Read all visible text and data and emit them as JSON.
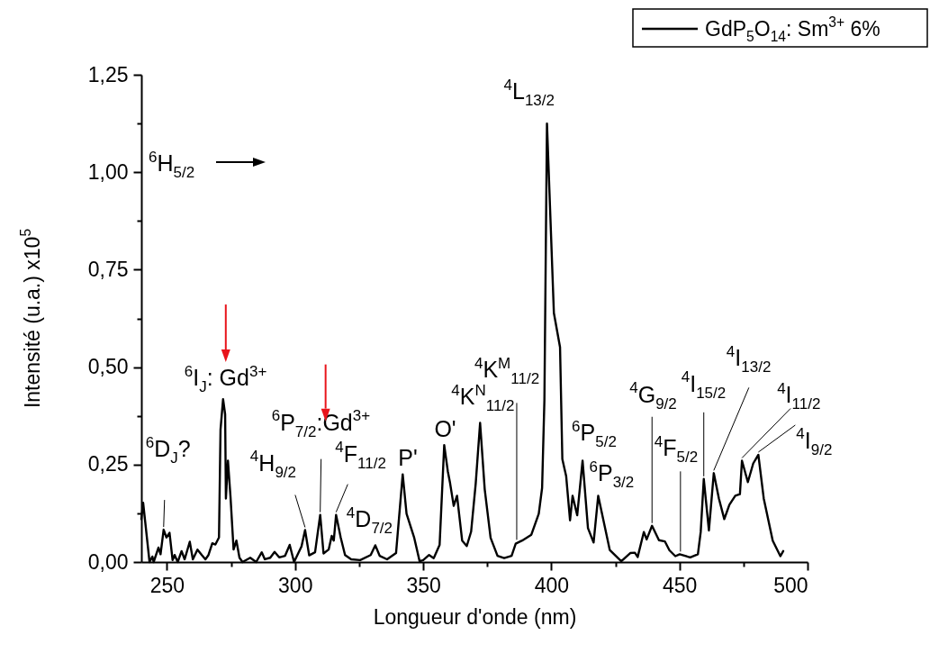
{
  "chart_data": {
    "type": "line",
    "xlabel": "Longueur d'onde (nm)",
    "ylabel": "Intensité (u.a.) x10$^{5}$",
    "x": [
      240,
      240.7,
      243.2,
      244.3,
      244.8,
      246.7,
      247.5,
      248.7,
      249.8,
      251,
      252.2,
      253,
      254.2,
      255.7,
      256.9,
      258.9,
      260.1,
      261.9,
      263.6,
      265,
      266.2,
      267.7,
      268.9,
      270.3,
      270.9,
      271.9,
      272.7,
      273,
      273.8,
      274.8,
      276,
      277.1,
      278.3,
      279.5,
      282.5,
      284.8,
      287,
      288.2,
      290.3,
      292,
      293.8,
      296.1,
      297.9,
      299.6,
      301.4,
      302.5,
      303.9,
      305.5,
      307.8,
      309.8,
      311.1,
      313.1,
      314.3,
      315.1,
      316,
      317.8,
      319.5,
      321.9,
      325.4,
      329.5,
      331.3,
      333,
      335.9,
      339.4,
      342,
      343.5,
      346.5,
      348.6,
      350,
      352.3,
      354.1,
      356.4,
      358.2,
      359.6,
      360.5,
      361.9,
      363.2,
      365.2,
      367,
      368.7,
      370.5,
      372.2,
      374,
      376.3,
      379,
      381.6,
      384.5,
      386.1,
      388.6,
      392.2,
      395.1,
      396.4,
      397.3,
      398.3,
      401,
      403.4,
      404.3,
      405.8,
      407.3,
      408.3,
      410.1,
      412.2,
      414.3,
      416.5,
      418.3,
      422.8,
      427.3,
      430.8,
      432.6,
      433.7,
      436.1,
      437.2,
      439.3,
      442,
      444.3,
      446.1,
      448.4,
      450.1,
      454.2,
      457.2,
      458.3,
      459.5,
      461.5,
      463.4,
      465.4,
      467.5,
      469.5,
      471.8,
      473.6,
      474.4,
      476.7,
      478.8,
      480.8,
      482.9,
      486.4,
      489.4,
      490.5
    ],
    "series": [
      {
        "name": "GdP$_{5}$O$_{14}$: Sm$^{3+}$ 6%",
        "color": "#000000",
        "values": [
          0.11,
          0.152,
          0,
          0.014,
          0,
          0.037,
          0.02,
          0.083,
          0.063,
          0.075,
          0.005,
          0.018,
          0,
          0.028,
          0.007,
          0.052,
          0.007,
          0.032,
          0.018,
          0.007,
          0.018,
          0.048,
          0.045,
          0.063,
          0.34,
          0.418,
          0.379,
          0.163,
          0.26,
          0.167,
          0.032,
          0.055,
          0.011,
          0,
          0.011,
          0,
          0.025,
          0.007,
          0.011,
          0.026,
          0.012,
          0.016,
          0.044,
          0,
          0.025,
          0.04,
          0.082,
          0.017,
          0.025,
          0.121,
          0.022,
          0.032,
          0.067,
          0.055,
          0.121,
          0.063,
          0.018,
          0.007,
          0.005,
          0.018,
          0.043,
          0.016,
          0.007,
          0.023,
          0.225,
          0.124,
          0.062,
          0.002,
          0.005,
          0.018,
          0.01,
          0.044,
          0.3,
          0.233,
          0.202,
          0.144,
          0.17,
          0.055,
          0.041,
          0.078,
          0.202,
          0.357,
          0.187,
          0.062,
          0.016,
          0.01,
          0.016,
          0.047,
          0.055,
          0.07,
          0.124,
          0.19,
          0.415,
          1.125,
          0.639,
          0.551,
          0.264,
          0.22,
          0.107,
          0.17,
          0.12,
          0.26,
          0.087,
          0.05,
          0.17,
          0.031,
          0.002,
          0.023,
          0.024,
          0.013,
          0.077,
          0.058,
          0.093,
          0.056,
          0.053,
          0.03,
          0.015,
          0.02,
          0.012,
          0.02,
          0.077,
          0.213,
          0.081,
          0.228,
          0.163,
          0.11,
          0.147,
          0.17,
          0.174,
          0.26,
          0.205,
          0.253,
          0.275,
          0.163,
          0.055,
          0.015,
          0.028
        ]
      }
    ],
    "xlim": [
      240,
      500
    ],
    "xticks": [
      250,
      {
        "value": 275,
        "label": null
      },
      300,
      {
        "value": 325,
        "label": null
      },
      350,
      {
        "value": 375,
        "label": null
      },
      400,
      {
        "value": 425,
        "label": null
      },
      450,
      {
        "value": 475,
        "label": null
      },
      500
    ],
    "ylim": [
      0,
      1.25
    ],
    "yticks": [
      {
        "value": 0,
        "label": "0,00"
      },
      {
        "value": 0.125,
        "label": null
      },
      {
        "value": 0.25,
        "label": "0,25"
      },
      {
        "value": 0.375,
        "label": null
      },
      {
        "value": 0.5,
        "label": "0,50"
      },
      {
        "value": 0.625,
        "label": null
      },
      {
        "value": 0.75,
        "label": "0,75"
      },
      {
        "value": 0.875,
        "label": null
      },
      {
        "value": 1,
        "label": "1,00"
      },
      {
        "value": 1.125,
        "label": null
      },
      {
        "value": 1.25,
        "label": "1,25"
      }
    ],
    "grid": false,
    "legend": "top right",
    "line_style": "solid",
    "marker": "none",
    "annotations": [
      {
        "text": "$^{6}$D$_{J}$?",
        "x": 248.7,
        "y": 0.083
      },
      {
        "text": "$^{6}$I$_{J}$: Gd$^{3+}$",
        "x": 271.9,
        "y": 0.418
      },
      {
        "text": "$^{6}$P$_{7/2}$:Gd$^{3+}$",
        "x": 309.8,
        "y": 0.121
      },
      {
        "text": "$^{4}$H$_{9/2}$",
        "x": 303.9,
        "y": 0.082
      },
      {
        "text": "$^{4}$F$_{11/2}$",
        "x": 316,
        "y": 0.121
      },
      {
        "text": "$^{4}$D$_{7/2}$",
        "x": 331.3,
        "y": 0.043
      },
      {
        "text": "P'",
        "x": 342,
        "y": 0.225
      },
      {
        "text": "O'",
        "x": 358.2,
        "y": 0.3
      },
      {
        "text": "$^{4}$K$^{N}$$_{11/2}$",
        "x": 372.2,
        "y": 0.357
      },
      {
        "text": "$^{4}$K$^{M}$$_{11/2}$",
        "x": 386.5,
        "y": 0.05
      },
      {
        "text": "$^{4}$L$_{13/2}$",
        "x": 398.3,
        "y": 1.125
      },
      {
        "text": "$^{6}$P$_{5/2}$",
        "x": 412.2,
        "y": 0.26
      },
      {
        "text": "$^{6}$P$_{3/2}$",
        "x": 418.3,
        "y": 0.17
      },
      {
        "text": "$^{4}$G$_{9/2}$",
        "x": 439.3,
        "y": 0.093
      },
      {
        "text": "$^{4}$F$_{5/2}$",
        "x": 450.4,
        "y": 0.02
      },
      {
        "text": "$^{4}$I$_{15/2}$",
        "x": 459.5,
        "y": 0.213
      },
      {
        "text": "$^{4}$I$_{13/2}$",
        "x": 463.4,
        "y": 0.228
      },
      {
        "text": "$^{4}$I$_{11/2}$",
        "x": 474.4,
        "y": 0.26
      },
      {
        "text": "$^{4}$I$_{9/2}$",
        "x": 480.8,
        "y": 0.275
      },
      "$^{6}$H$_{5/2}$"
    ]
  }
}
